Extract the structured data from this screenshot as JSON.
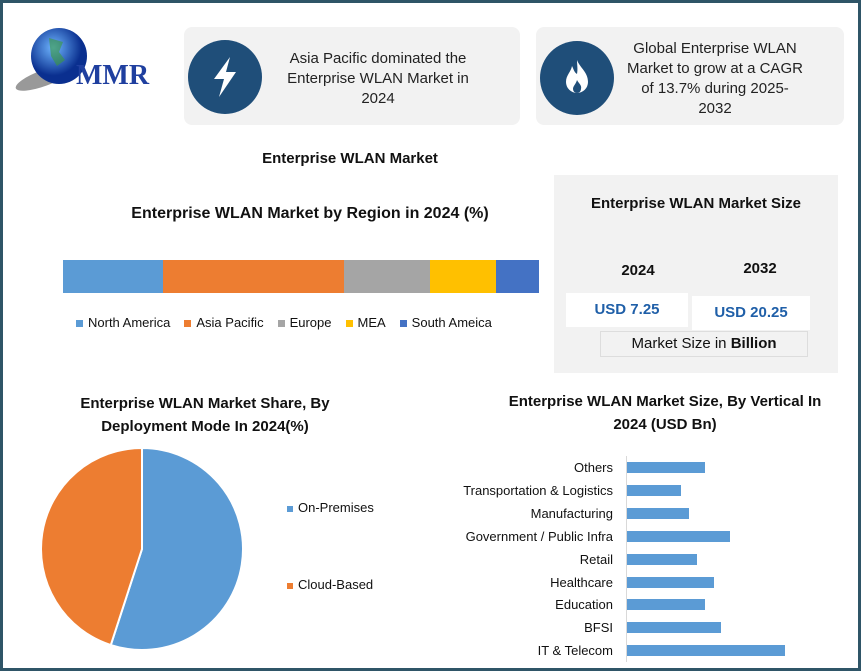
{
  "logo": {
    "text": "MMR"
  },
  "cards": [
    {
      "icon": "lightning-icon",
      "text": "Asia Pacific dominated the Enterprise WLAN Market in 2024"
    },
    {
      "icon": "flame-icon",
      "text": "Global Enterprise WLAN Market to grow at a CAGR of 13.7% during 2025-2032"
    }
  ],
  "main_title": "Enterprise WLAN Market",
  "market_size": {
    "title": "Enterprise WLAN Market Size",
    "years": [
      "2024",
      "2032"
    ],
    "values": [
      "USD 7.25",
      "USD 20.25"
    ],
    "unit_prefix": "Market Size in ",
    "unit_bold": "Billion"
  },
  "colors": {
    "accent": "#1f4e79",
    "blue": "#5b9bd5",
    "orange": "#ed7d31",
    "gray": "#a5a5a5",
    "yellow": "#ffc000",
    "darkblue": "#4472c4"
  },
  "chart_data": [
    {
      "type": "bar",
      "orientation": "stacked-horizontal",
      "title": "Enterprise WLAN Market by Region in 2024 (%)",
      "categories": [
        "North America",
        "Asia Pacific",
        "Europe",
        "MEA",
        "South Ameica"
      ],
      "values": [
        21,
        38,
        18,
        14,
        9
      ],
      "colors": [
        "#5b9bd5",
        "#ed7d31",
        "#a5a5a5",
        "#ffc000",
        "#4472c4"
      ],
      "legend": "bottom"
    },
    {
      "type": "pie",
      "title": "Enterprise WLAN Market Share, By Deployment Mode In 2024(%)",
      "categories": [
        "On-Premises",
        "Cloud-Based"
      ],
      "values": [
        55,
        45
      ],
      "colors": [
        "#5b9bd5",
        "#ed7d31"
      ],
      "legend": "right"
    },
    {
      "type": "bar",
      "orientation": "horizontal",
      "title": "Enterprise WLAN Market Size, By Vertical In 2024 (USD Bn)",
      "categories": [
        "Others",
        "Transportation & Logistics",
        "Manufacturing",
        "Government / Public Infra",
        "Retail",
        "Healthcare",
        "Education",
        "BFSI",
        "IT & Telecom"
      ],
      "values": [
        0.72,
        0.5,
        0.57,
        0.95,
        0.65,
        0.8,
        0.72,
        0.87,
        1.46
      ],
      "color": "#5b9bd5"
    }
  ]
}
